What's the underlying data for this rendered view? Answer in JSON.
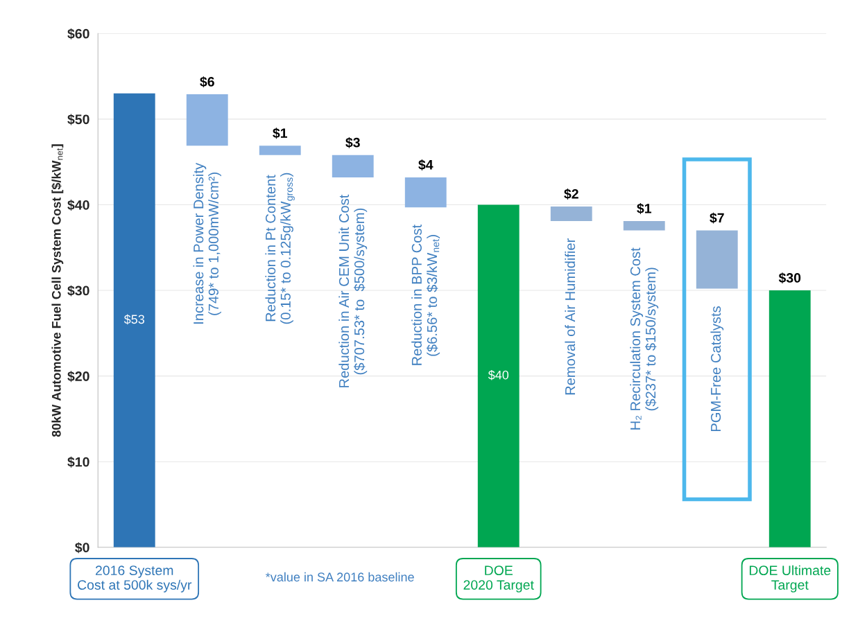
{
  "chart_data": {
    "type": "bar",
    "ylabel": "80kW Automotive Fuel Cell System Cost [$/kW$_{net}$]",
    "categories": [
      "2016 System\nCost at 500k sys/yr",
      "Increase in Power Density\n(749* to 1,000mW/cm²)",
      "Reduction in Pt Content\n(0.15* to 0.125g/kW$_{gross}$)",
      "Reduction in Air CEM Unit Cost\n($707.53* to  $500/system)",
      "Reduction in BPP Cost\n($6.56* to $3/kW$_{net}$)",
      "DOE\n2020 Target",
      "Removal of Air Humidifier",
      "H₂ Recirculation System Cost\n($237* to $150/system)",
      "PGM-Free Catalysts",
      "DOE Ultimate\nTarget"
    ],
    "values": [
      53,
      6,
      1.1,
      2.6,
      3.5,
      40,
      1.7,
      1.1,
      6.8,
      30
    ],
    "base": [
      0,
      46.9,
      45.8,
      43.2,
      39.7,
      0,
      38.1,
      37.0,
      30.2,
      0
    ],
    "colors": [
      "#2e75b6",
      "#8db3e2",
      "#8db3e2",
      "#8db3e2",
      "#8db3e2",
      "#00a651",
      "#95b3d7",
      "#95b3d7",
      "#95b3d7",
      "#00a651"
    ],
    "value_labels": [
      "$53",
      "$6",
      "$1",
      "$3",
      "$4",
      "$40",
      "$2",
      "$1",
      "$7",
      "$30"
    ],
    "annotations": [
      "*value in SA 2016 baseline"
    ],
    "ylim": [
      0,
      60
    ],
    "yticks": [
      {
        "value": 0,
        "label": "$0"
      },
      {
        "value": 10,
        "label": "$10"
      },
      {
        "value": 20,
        "label": "$20"
      },
      {
        "value": 30,
        "label": "$30"
      },
      {
        "value": 40,
        "label": "$40"
      },
      {
        "value": 50,
        "label": "$50"
      },
      {
        "value": 60,
        "label": "$60"
      }
    ],
    "grid": "y"
  }
}
